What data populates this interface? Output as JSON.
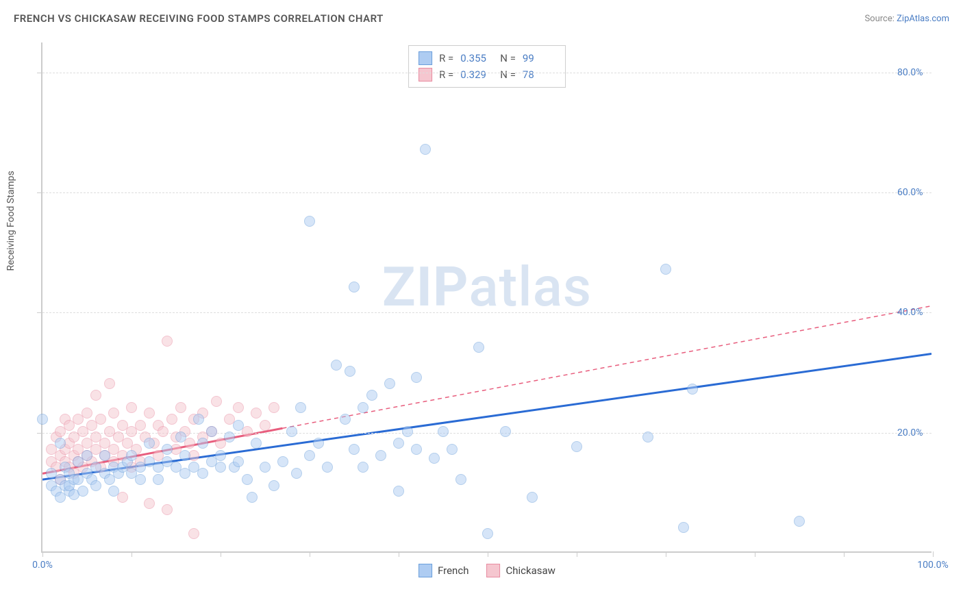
{
  "title": "FRENCH VS CHICKASAW RECEIVING FOOD STAMPS CORRELATION CHART",
  "source_label": "Source:",
  "source_link": "ZipAtlas.com",
  "y_axis_title": "Receiving Food Stamps",
  "watermark": {
    "bold": "ZIP",
    "light": "atlas"
  },
  "chart": {
    "type": "scatter",
    "xlim": [
      0,
      100
    ],
    "ylim": [
      0,
      85
    ],
    "y_ticks": [
      20,
      40,
      60,
      80
    ],
    "y_tick_labels": [
      "20.0%",
      "40.0%",
      "60.0%",
      "80.0%"
    ],
    "x_ticks": [
      0,
      10,
      20,
      30,
      40,
      50,
      60,
      70,
      80,
      90,
      100
    ],
    "x_labels": {
      "min": "0.0%",
      "max": "100.0%"
    },
    "grid_color": "#dddddd",
    "axis_color": "#cccccc",
    "background_color": "#ffffff",
    "point_radius": 8,
    "point_opacity": 0.5,
    "point_stroke_width": 1
  },
  "series": [
    {
      "name": "French",
      "color_fill": "#aeccf2",
      "color_stroke": "#6a9edb",
      "trend_color": "#2a6bd4",
      "trend_width": 3,
      "trend_dash": "none",
      "trend": {
        "x1": 0,
        "y1": 12,
        "x2": 100,
        "y2": 33
      },
      "R": "0.355",
      "N": "99",
      "points": [
        [
          0,
          22
        ],
        [
          1,
          11
        ],
        [
          1,
          13
        ],
        [
          1.5,
          10
        ],
        [
          2,
          9
        ],
        [
          2,
          12
        ],
        [
          2,
          18
        ],
        [
          2.5,
          11
        ],
        [
          2.5,
          14
        ],
        [
          3,
          10
        ],
        [
          3,
          11
        ],
        [
          3,
          13
        ],
        [
          3.5,
          12
        ],
        [
          3.5,
          9.5
        ],
        [
          4,
          15
        ],
        [
          4,
          12
        ],
        [
          4.5,
          10
        ],
        [
          5,
          13
        ],
        [
          5,
          16
        ],
        [
          5.5,
          12
        ],
        [
          6,
          14
        ],
        [
          6,
          11
        ],
        [
          7,
          13
        ],
        [
          7,
          16
        ],
        [
          7.5,
          12
        ],
        [
          8,
          14
        ],
        [
          8,
          10
        ],
        [
          8.5,
          13
        ],
        [
          9,
          14
        ],
        [
          9.5,
          15
        ],
        [
          10,
          16
        ],
        [
          10,
          13
        ],
        [
          11,
          14
        ],
        [
          11,
          12
        ],
        [
          12,
          15
        ],
        [
          12,
          18
        ],
        [
          13,
          14
        ],
        [
          13,
          12
        ],
        [
          14,
          15
        ],
        [
          14,
          17
        ],
        [
          15,
          14
        ],
        [
          15.5,
          19
        ],
        [
          16,
          13
        ],
        [
          16,
          16
        ],
        [
          17,
          14
        ],
        [
          17.5,
          22
        ],
        [
          18,
          13
        ],
        [
          18,
          18
        ],
        [
          19,
          15
        ],
        [
          19,
          20
        ],
        [
          20,
          14
        ],
        [
          20,
          16
        ],
        [
          21,
          19
        ],
        [
          21.5,
          14
        ],
        [
          22,
          15
        ],
        [
          22,
          21
        ],
        [
          23,
          12
        ],
        [
          23.5,
          9
        ],
        [
          24,
          18
        ],
        [
          25,
          14
        ],
        [
          26,
          11
        ],
        [
          27,
          15
        ],
        [
          28,
          20
        ],
        [
          28.5,
          13
        ],
        [
          29,
          24
        ],
        [
          30,
          16
        ],
        [
          30,
          55
        ],
        [
          31,
          18
        ],
        [
          32,
          14
        ],
        [
          33,
          31
        ],
        [
          34,
          22
        ],
        [
          34.5,
          30
        ],
        [
          35,
          17
        ],
        [
          35,
          44
        ],
        [
          36,
          24
        ],
        [
          36,
          14
        ],
        [
          37,
          26
        ],
        [
          38,
          16
        ],
        [
          39,
          28
        ],
        [
          40,
          18
        ],
        [
          40,
          10
        ],
        [
          41,
          20
        ],
        [
          42,
          17
        ],
        [
          42,
          29
        ],
        [
          43,
          67
        ],
        [
          44,
          15.5
        ],
        [
          45,
          20
        ],
        [
          46,
          17
        ],
        [
          47,
          12
        ],
        [
          49,
          34
        ],
        [
          50,
          3
        ],
        [
          52,
          20
        ],
        [
          55,
          9
        ],
        [
          60,
          17.5
        ],
        [
          68,
          19
        ],
        [
          70,
          47
        ],
        [
          72,
          4
        ],
        [
          73,
          27
        ],
        [
          85,
          5
        ]
      ]
    },
    {
      "name": "Chickasaw",
      "color_fill": "#f5c6cf",
      "color_stroke": "#e88ba0",
      "trend_color": "#e85d7d",
      "trend_width": 3,
      "trend_dash_solid_until": 27,
      "trend_dash": "6,5",
      "trend": {
        "x1": 0,
        "y1": 13,
        "x2": 100,
        "y2": 41
      },
      "R": "0.329",
      "N": "78",
      "points": [
        [
          1,
          15
        ],
        [
          1,
          17
        ],
        [
          1.5,
          14
        ],
        [
          1.5,
          19
        ],
        [
          2,
          16
        ],
        [
          2,
          12
        ],
        [
          2,
          20
        ],
        [
          2.5,
          22
        ],
        [
          2.5,
          15
        ],
        [
          2.5,
          17
        ],
        [
          3,
          14
        ],
        [
          3,
          18
        ],
        [
          3,
          21
        ],
        [
          3.5,
          16
        ],
        [
          3.5,
          19
        ],
        [
          3.5,
          13
        ],
        [
          4,
          17
        ],
        [
          4,
          22
        ],
        [
          4,
          15
        ],
        [
          4.5,
          20
        ],
        [
          4.5,
          14
        ],
        [
          5,
          18
        ],
        [
          5,
          23
        ],
        [
          5,
          16
        ],
        [
          5.5,
          15
        ],
        [
          5.5,
          21
        ],
        [
          6,
          17
        ],
        [
          6,
          19
        ],
        [
          6,
          26
        ],
        [
          6.5,
          14
        ],
        [
          6.5,
          22
        ],
        [
          7,
          18
        ],
        [
          7,
          16
        ],
        [
          7.5,
          20
        ],
        [
          7.5,
          28
        ],
        [
          8,
          17
        ],
        [
          8,
          15
        ],
        [
          8,
          23
        ],
        [
          8.5,
          19
        ],
        [
          9,
          16
        ],
        [
          9,
          21
        ],
        [
          9,
          9
        ],
        [
          9.5,
          18
        ],
        [
          10,
          20
        ],
        [
          10,
          14
        ],
        [
          10,
          24
        ],
        [
          10.5,
          17
        ],
        [
          11,
          21
        ],
        [
          11,
          15
        ],
        [
          11.5,
          19
        ],
        [
          12,
          23
        ],
        [
          12,
          8
        ],
        [
          12.5,
          18
        ],
        [
          13,
          21
        ],
        [
          13,
          16
        ],
        [
          13.5,
          20
        ],
        [
          14,
          35
        ],
        [
          14,
          7
        ],
        [
          14.5,
          22
        ],
        [
          15,
          19
        ],
        [
          15,
          17
        ],
        [
          15.5,
          24
        ],
        [
          16,
          20
        ],
        [
          16.5,
          18
        ],
        [
          17,
          22
        ],
        [
          17,
          16
        ],
        [
          18,
          23
        ],
        [
          18,
          19
        ],
        [
          19,
          20
        ],
        [
          19.5,
          25
        ],
        [
          20,
          18
        ],
        [
          21,
          22
        ],
        [
          22,
          24
        ],
        [
          23,
          20
        ],
        [
          24,
          23
        ],
        [
          25,
          21
        ],
        [
          26,
          24
        ],
        [
          17,
          3
        ]
      ]
    }
  ],
  "stats_box": {
    "labels": {
      "R": "R =",
      "N": "N ="
    }
  },
  "legend": {
    "items": [
      "French",
      "Chickasaw"
    ]
  }
}
